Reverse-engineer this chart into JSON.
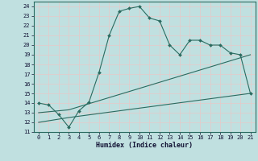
{
  "xlabel": "Humidex (Indice chaleur)",
  "bg_color": "#c0e0e0",
  "line_color": "#2a6b60",
  "grid_color_v": "#e8c8c8",
  "grid_color_h": "#e8c8c8",
  "xlim": [
    -0.5,
    21.5
  ],
  "ylim": [
    11,
    24.5
  ],
  "yticks": [
    11,
    12,
    13,
    14,
    15,
    16,
    17,
    18,
    19,
    20,
    21,
    22,
    23,
    24
  ],
  "xticks": [
    0,
    1,
    2,
    3,
    4,
    5,
    6,
    7,
    8,
    9,
    10,
    11,
    12,
    13,
    14,
    15,
    16,
    17,
    18,
    19,
    20,
    21
  ],
  "line1_x": [
    0,
    1,
    2,
    3,
    4,
    5,
    6,
    7,
    8,
    9,
    10,
    11,
    12,
    13,
    14,
    15,
    16,
    17,
    18,
    19,
    20,
    21
  ],
  "line1_y": [
    14,
    13.8,
    12.8,
    11.5,
    13.2,
    14.1,
    17.2,
    21.0,
    23.5,
    23.8,
    24.0,
    22.8,
    22.5,
    20.0,
    19.0,
    20.5,
    20.5,
    20.0,
    20.0,
    19.2,
    19.0,
    15.0
  ],
  "line2_x": [
    0,
    3,
    21
  ],
  "line2_y": [
    13.0,
    13.3,
    19.0
  ],
  "line3_x": [
    0,
    3,
    21
  ],
  "line3_y": [
    12.0,
    12.5,
    15.0
  ]
}
